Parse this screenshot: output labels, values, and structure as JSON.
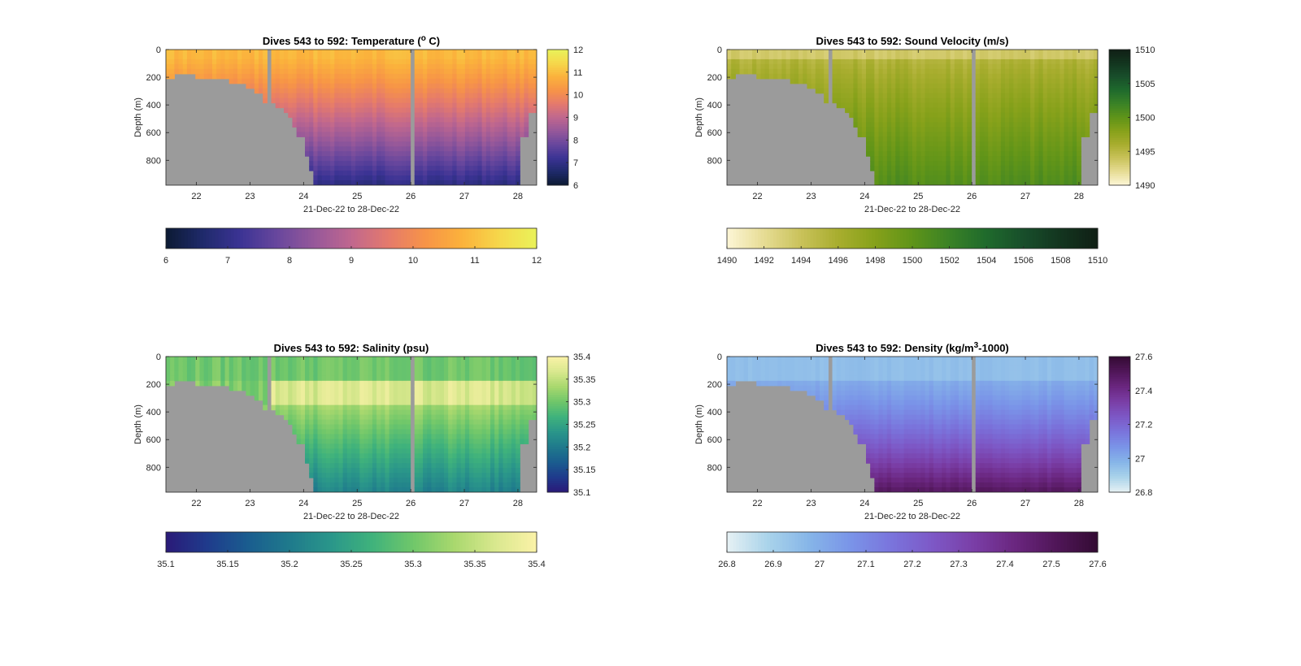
{
  "chart_data": [
    {
      "type": "heatmap",
      "title": "Dives 543 to 592: Temperature (",
      "title_sup": "o",
      "title_suffix": " C)",
      "xlabel": "21-Dec-22 to 28-Dec-22",
      "ylabel": "Depth (m)",
      "x_ticks": [
        "22",
        "23",
        "24",
        "25",
        "26",
        "27",
        "28"
      ],
      "y_ticks": [
        "0",
        "200",
        "400",
        "600",
        "800"
      ],
      "xlim": [
        21.43,
        28.35
      ],
      "ylim": [
        0,
        980
      ],
      "x_tick_values": [
        22,
        23,
        24,
        25,
        26,
        27,
        28
      ],
      "y_tick_values": [
        0,
        200,
        400,
        600,
        800
      ],
      "colorbar_range": [
        6,
        12
      ],
      "colorbar_ticks": [
        "6",
        "7",
        "8",
        "9",
        "10",
        "11",
        "12"
      ],
      "colorbar_tick_values": [
        6,
        7,
        8,
        9,
        10,
        11,
        12
      ],
      "colormap": [
        "#0c1a33",
        "#1f2a6b",
        "#3b3394",
        "#68479d",
        "#96589a",
        "#c0678e",
        "#e57a6c",
        "#f79447",
        "#fbb23c",
        "#f6d84b",
        "#e9f25a"
      ],
      "surface_value": 10.9,
      "deep_value": 6.9
    },
    {
      "type": "heatmap",
      "title": "Dives 543 to 592: Sound Velocity (m/s)",
      "title_sup": "",
      "title_suffix": "",
      "xlabel": "21-Dec-22 to 28-Dec-22",
      "ylabel": "Depth (m)",
      "x_ticks": [
        "22",
        "23",
        "24",
        "25",
        "26",
        "27",
        "28"
      ],
      "y_ticks": [
        "0",
        "200",
        "400",
        "600",
        "800"
      ],
      "xlim": [
        21.43,
        28.35
      ],
      "ylim": [
        0,
        980
      ],
      "x_tick_values": [
        22,
        23,
        24,
        25,
        26,
        27,
        28
      ],
      "y_tick_values": [
        0,
        200,
        400,
        600,
        800
      ],
      "colorbar_range": [
        1490,
        1510
      ],
      "colorbar_ticks": [
        "1490",
        "1495",
        "1500",
        "1505",
        "1510"
      ],
      "colorbar_tick_values": [
        1490,
        1495,
        1500,
        1505,
        1510
      ],
      "colorbar_h_ticks": [
        "1490",
        "1492",
        "1494",
        "1496",
        "1498",
        "1500",
        "1502",
        "1504",
        "1506",
        "1508",
        "1510"
      ],
      "colorbar_h_tick_values": [
        1490,
        1492,
        1494,
        1496,
        1498,
        1500,
        1502,
        1504,
        1506,
        1508,
        1510
      ],
      "colormap": [
        "#fdf6d6",
        "#e6dc94",
        "#c9c25a",
        "#a8ad2e",
        "#86a11a",
        "#5f9419",
        "#3a8226",
        "#1f6a2c",
        "#184e2b",
        "#13351f",
        "#101f15"
      ],
      "surface_value": 1494.6,
      "deep_value": 1500.8
    },
    {
      "type": "heatmap",
      "title": "Dives 543 to 592: Salinity (psu)",
      "title_sup": "",
      "title_suffix": "",
      "xlabel": "21-Dec-22 to 28-Dec-22",
      "ylabel": "Depth (m)",
      "x_ticks": [
        "22",
        "23",
        "24",
        "25",
        "26",
        "27",
        "28"
      ],
      "y_ticks": [
        "0",
        "200",
        "400",
        "600",
        "800"
      ],
      "xlim": [
        21.43,
        28.35
      ],
      "ylim": [
        0,
        980
      ],
      "x_tick_values": [
        22,
        23,
        24,
        25,
        26,
        27,
        28
      ],
      "y_tick_values": [
        0,
        200,
        400,
        600,
        800
      ],
      "colorbar_range": [
        35.1,
        35.4
      ],
      "colorbar_ticks": [
        "35.1",
        "35.15",
        "35.2",
        "35.25",
        "35.3",
        "35.35",
        "35.4"
      ],
      "colorbar_tick_values": [
        35.1,
        35.15,
        35.2,
        35.25,
        35.3,
        35.35,
        35.4
      ],
      "colormap": [
        "#2a1a78",
        "#1f3b8c",
        "#1a5d8f",
        "#1f7a8c",
        "#2a968a",
        "#3fb27c",
        "#70c76a",
        "#a9d86e",
        "#d9e88e",
        "#fbf2a8"
      ],
      "surface_value": 35.3,
      "deep_value": 35.23
    },
    {
      "type": "heatmap",
      "title": "Dives 543 to 592: Density (kg/m",
      "title_sup": "3",
      "title_suffix": "-1000)",
      "xlabel": "21-Dec-22 to 28-Dec-22",
      "ylabel": "Depth (m)",
      "x_ticks": [
        "22",
        "23",
        "24",
        "25",
        "26",
        "27",
        "28"
      ],
      "y_ticks": [
        "0",
        "200",
        "400",
        "600",
        "800"
      ],
      "xlim": [
        21.43,
        28.35
      ],
      "ylim": [
        0,
        980
      ],
      "x_tick_values": [
        22,
        23,
        24,
        25,
        26,
        27,
        28
      ],
      "y_tick_values": [
        0,
        200,
        400,
        600,
        800
      ],
      "colorbar_range": [
        26.8,
        27.6
      ],
      "colorbar_ticks": [
        "26.8",
        "27",
        "27.2",
        "27.4",
        "27.6"
      ],
      "colorbar_tick_values": [
        26.8,
        27.0,
        27.2,
        27.4,
        27.6
      ],
      "colorbar_h_ticks": [
        "26.8",
        "26.9",
        "27",
        "27.1",
        "27.2",
        "27.3",
        "27.4",
        "27.5",
        "27.6"
      ],
      "colorbar_h_tick_values": [
        26.8,
        26.9,
        27.0,
        27.1,
        27.2,
        27.3,
        27.4,
        27.5,
        27.6
      ],
      "colormap": [
        "#e6f1f4",
        "#a9d3ea",
        "#86b5e8",
        "#7a94e8",
        "#7a74dc",
        "#7d58c6",
        "#7a3ea6",
        "#6a267f",
        "#501658",
        "#330b33"
      ],
      "surface_value": 26.97,
      "deep_value": 27.5
    }
  ],
  "colors": {
    "missing_data": "#9b9b9b",
    "axes": "#262626",
    "background": "#ffffff"
  },
  "data_gaps_day": [
    [
      23.28,
      23.38
    ],
    [
      25.97,
      26.06
    ]
  ],
  "seafloor_profile": {
    "day": [
      21.43,
      21.6,
      21.8,
      22.0,
      22.2,
      22.4,
      22.6,
      22.8,
      22.95,
      23.1,
      23.25,
      23.4,
      23.5,
      23.6,
      23.7,
      23.8,
      23.9,
      24.0,
      24.1,
      24.2,
      24.3
    ],
    "depth_m": [
      210,
      200,
      190,
      190,
      195,
      205,
      215,
      230,
      245,
      270,
      300,
      370,
      390,
      420,
      460,
      500,
      550,
      640,
      760,
      880,
      980
    ],
    "right_edge_day": [
      28.05,
      28.2,
      28.35
    ],
    "right_edge_depth_m": [
      620,
      440,
      420
    ]
  }
}
